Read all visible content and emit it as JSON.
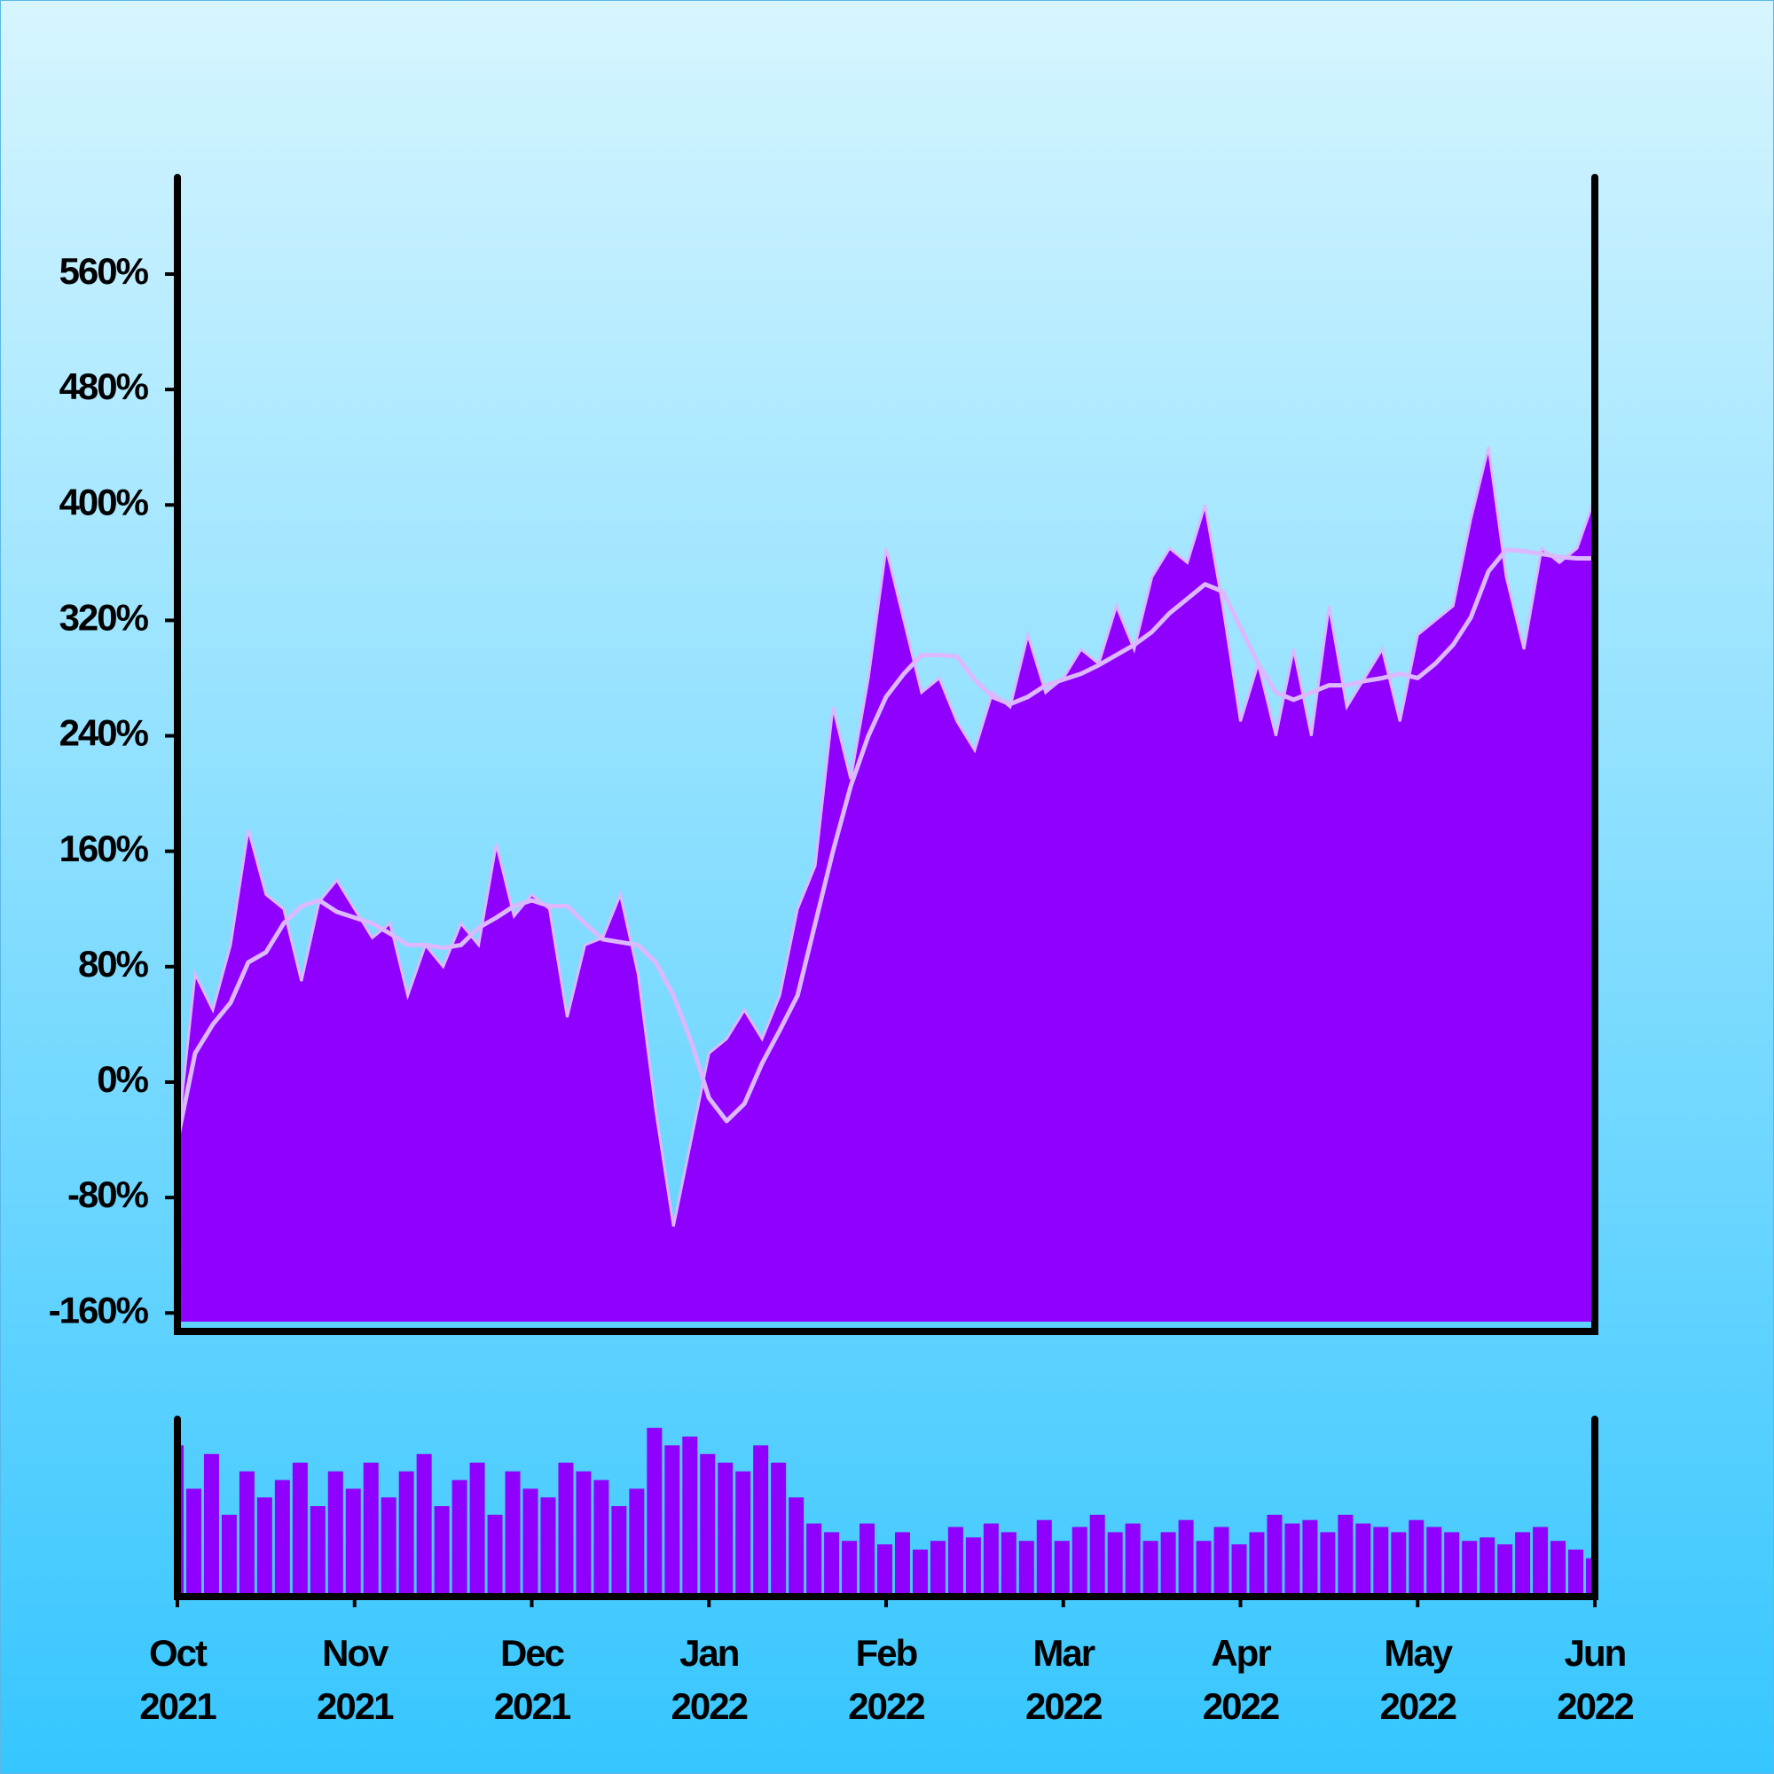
{
  "chart_data": {
    "type": "area",
    "x": [
      0,
      0.1,
      0.2,
      0.3,
      0.4,
      0.5,
      0.6,
      0.7,
      0.8,
      0.9,
      1,
      1.1,
      1.2,
      1.3,
      1.4,
      1.5,
      1.6,
      1.7,
      1.8,
      1.9,
      2,
      2.1,
      2.2,
      2.3,
      2.4,
      2.5,
      2.6,
      2.7,
      2.8,
      2.9,
      3,
      3.1,
      3.2,
      3.3,
      3.4,
      3.5,
      3.6,
      3.7,
      3.8,
      3.9,
      4,
      4.1,
      4.2,
      4.3,
      4.4,
      4.5,
      4.6,
      4.7,
      4.8,
      4.9,
      5,
      5.1,
      5.2,
      5.3,
      5.4,
      5.5,
      5.6,
      5.7,
      5.8,
      5.9,
      6,
      6.1,
      6.2,
      6.3,
      6.4,
      6.5,
      6.6,
      6.7,
      6.8,
      6.9,
      7,
      7.1,
      7.2,
      7.3,
      7.4,
      7.5,
      7.6,
      7.7,
      7.8,
      7.9,
      8
    ],
    "xlim": [
      0,
      8
    ],
    "xticks": [
      {
        "value": 0,
        "label": [
          "Oct",
          "2021"
        ]
      },
      {
        "value": 1,
        "label": [
          "Nov",
          "2021"
        ]
      },
      {
        "value": 2,
        "label": [
          "Dec",
          "2021"
        ]
      },
      {
        "value": 3,
        "label": [
          "Jan",
          "2022"
        ]
      },
      {
        "value": 4,
        "label": [
          "Feb",
          "2022"
        ]
      },
      {
        "value": 5,
        "label": [
          "Mar",
          "2022"
        ]
      },
      {
        "value": 6,
        "label": [
          "Apr",
          "2022"
        ]
      },
      {
        "value": 7,
        "label": [
          "May",
          "2022"
        ]
      },
      {
        "value": 8,
        "label": [
          "Jun",
          "2022"
        ]
      }
    ],
    "ylim": [
      -166,
      627
    ],
    "yticks": [
      {
        "value": -160,
        "label": "-160%"
      },
      {
        "value": -80,
        "label": "-80%"
      },
      {
        "value": 0,
        "label": "0%"
      },
      {
        "value": 80,
        "label": "80%"
      },
      {
        "value": 160,
        "label": "160%"
      },
      {
        "value": 240,
        "label": "240%"
      },
      {
        "value": 320,
        "label": "320%"
      },
      {
        "value": 400,
        "label": "400%"
      },
      {
        "value": 480,
        "label": "480%"
      },
      {
        "value": 560,
        "label": "560%"
      }
    ],
    "series": [
      {
        "color": "#9000ff",
        "line_color": "#dcb8ff",
        "values": [
          -40,
          75,
          50,
          95,
          175,
          130,
          120,
          70,
          125,
          140,
          120,
          100,
          110,
          60,
          95,
          80,
          110,
          95,
          165,
          115,
          130,
          120,
          45,
          95,
          100,
          130,
          75,
          -20,
          -100,
          -40,
          20,
          30,
          50,
          30,
          60,
          120,
          150,
          260,
          210,
          280,
          370,
          320,
          270,
          280,
          250,
          230,
          270,
          260,
          310,
          270,
          280,
          300,
          290,
          330,
          300,
          350,
          370,
          360,
          400,
          330,
          250,
          290,
          240,
          300,
          240,
          330,
          260,
          280,
          300,
          250,
          310,
          320,
          330,
          390,
          440,
          350,
          300,
          370,
          360,
          370,
          405
        ]
      },
      {
        "type": "line",
        "color": "#dcb8ff",
        "values": [
          -40,
          20,
          40,
          55,
          83,
          90,
          110,
          122,
          126,
          118,
          114,
          110,
          103,
          95,
          95,
          93,
          95,
          107,
          114,
          122,
          126,
          122,
          122,
          110,
          99,
          97,
          95,
          83,
          60,
          28,
          -11,
          -27,
          -15,
          13,
          36,
          60,
          110,
          160,
          205,
          240,
          267,
          283,
          296,
          296,
          295,
          279,
          267,
          262,
          267,
          275,
          279,
          283,
          289,
          296,
          303,
          312,
          325,
          335,
          345,
          340,
          315,
          290,
          270,
          265,
          270,
          275,
          275,
          278,
          280,
          283,
          280,
          290,
          303,
          322,
          354,
          369,
          368,
          366,
          364,
          363,
          363
        ]
      }
    ],
    "volume": {
      "type": "bar",
      "color": "#9000ff",
      "ylim": [
        0,
        100
      ],
      "values": [
        85,
        60,
        80,
        45,
        70,
        55,
        65,
        75,
        50,
        70,
        60,
        75,
        55,
        70,
        80,
        50,
        65,
        75,
        45,
        70,
        60,
        55,
        75,
        70,
        65,
        50,
        60,
        95,
        85,
        90,
        80,
        75,
        70,
        85,
        75,
        55,
        40,
        35,
        30,
        40,
        28,
        35,
        25,
        30,
        38,
        32,
        40,
        35,
        30,
        42,
        30,
        38,
        45,
        35,
        40,
        30,
        35,
        42,
        30,
        38,
        28,
        35,
        45,
        40,
        42,
        35,
        45,
        40,
        38,
        35,
        42,
        38,
        35,
        30,
        32,
        28,
        35,
        38,
        30,
        25,
        20
      ]
    }
  }
}
